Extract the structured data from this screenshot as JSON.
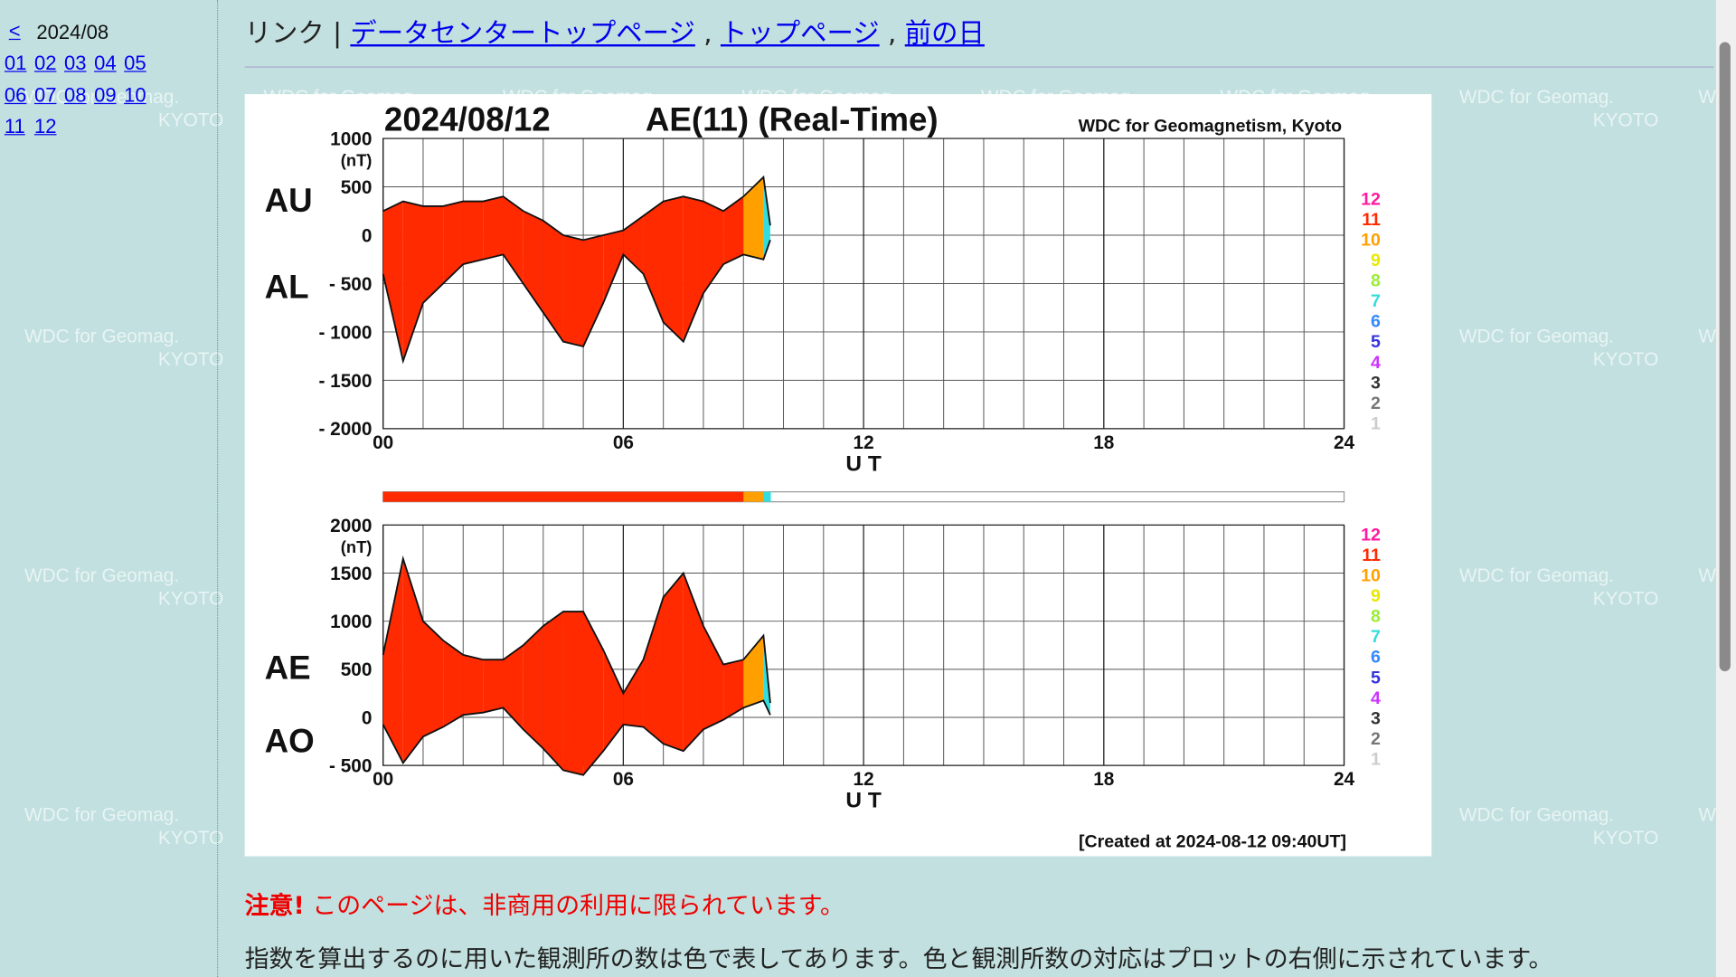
{
  "sidebar": {
    "prev": "<",
    "month": "2024/08",
    "days": [
      "01",
      "02",
      "03",
      "04",
      "05",
      "06",
      "07",
      "08",
      "09",
      "10",
      "11",
      "12"
    ]
  },
  "watermark": {
    "line1": "WDC for Geomag.",
    "line2": "KYOTO"
  },
  "header": {
    "label": "リンク |",
    "links": [
      "データセンタートップページ",
      "トップページ",
      "前の日"
    ],
    "separator": ","
  },
  "notice": {
    "warning": "注意!",
    "text": "このページは、非商用の利用に限られています。",
    "description": "指数を算出するのに用いた観測所の数は色で表してあります。色と観測所数の対応はプロットの右側に示されています。"
  },
  "chart_data": [
    {
      "type": "band",
      "date": "2024/08/12",
      "title": "AE(11) (Real-Time)",
      "credit": "WDC for Geomagnetism, Kyoto",
      "unit": "(nT)",
      "xlabel": "U T",
      "x": [
        0,
        0.5,
        1,
        1.5,
        2,
        2.5,
        3,
        3.5,
        4,
        4.5,
        5,
        5.5,
        6,
        6.5,
        7,
        7.5,
        8,
        8.5,
        9,
        9.5,
        9.67
      ],
      "series": [
        {
          "name": "AU",
          "values": [
            250,
            350,
            300,
            300,
            350,
            350,
            400,
            250,
            150,
            0,
            -50,
            0,
            50,
            200,
            350,
            400,
            350,
            250,
            400,
            600,
            100
          ]
        },
        {
          "name": "AL",
          "values": [
            -400,
            -1300,
            -700,
            -500,
            -300,
            -250,
            -200,
            -500,
            -800,
            -1100,
            -1150,
            -700,
            -200,
            -400,
            -900,
            -1100,
            -600,
            -300,
            -200,
            -250,
            -50
          ]
        }
      ],
      "station_counts": [
        11,
        11,
        11,
        11,
        11,
        11,
        11,
        11,
        11,
        11,
        11,
        11,
        11,
        11,
        11,
        11,
        11,
        11,
        11,
        10,
        7
      ],
      "xlim": [
        0,
        24
      ],
      "xticks": [
        {
          "value": 0,
          "label": "00"
        },
        {
          "value": 6,
          "label": "06"
        },
        12,
        18,
        24
      ],
      "ylim": [
        -2000,
        1000
      ],
      "yticks": [
        1000,
        500,
        0,
        {
          "value": -500,
          "label": "- 500"
        },
        {
          "value": -1000,
          "label": "- 1000"
        },
        {
          "value": -1500,
          "label": "- 1500"
        },
        {
          "value": -2000,
          "label": "- 2000"
        }
      ],
      "grid": true,
      "station_legend": [
        {
          "label": 12,
          "color": "#ff1aa0"
        },
        {
          "label": 11,
          "color": "#ff2a00"
        },
        {
          "label": 10,
          "color": "#ffa000"
        },
        {
          "label": 9,
          "color": "#e8e800"
        },
        {
          "label": 8,
          "color": "#99ee33"
        },
        {
          "label": 7,
          "color": "#33dddd"
        },
        {
          "label": 6,
          "color": "#3388ff"
        },
        {
          "label": 5,
          "color": "#3333dd"
        },
        {
          "label": 4,
          "color": "#cc33ff"
        },
        {
          "label": 3,
          "color": "#333333"
        },
        {
          "label": 2,
          "color": "#777777"
        },
        {
          "label": 1,
          "color": "#cccccc"
        }
      ]
    },
    {
      "type": "band",
      "unit": "(nT)",
      "xlabel": "U T",
      "note": "[Created at 2024-08-12 09:40UT]",
      "x": [
        0,
        0.5,
        1,
        1.5,
        2,
        2.5,
        3,
        3.5,
        4,
        4.5,
        5,
        5.5,
        6,
        6.5,
        7,
        7.5,
        8,
        8.5,
        9,
        9.5,
        9.67
      ],
      "series": [
        {
          "name": "AE",
          "values": [
            650,
            1650,
            1000,
            800,
            650,
            600,
            600,
            750,
            950,
            1100,
            1100,
            700,
            250,
            600,
            1250,
            1500,
            950,
            550,
            600,
            850,
            150
          ]
        },
        {
          "name": "AO",
          "values": [
            -75,
            -475,
            -200,
            -100,
            25,
            50,
            100,
            -125,
            -325,
            -550,
            -600,
            -350,
            -75,
            -100,
            -275,
            -350,
            -125,
            -25,
            100,
            175,
            25
          ]
        }
      ],
      "station_counts": [
        11,
        11,
        11,
        11,
        11,
        11,
        11,
        11,
        11,
        11,
        11,
        11,
        11,
        11,
        11,
        11,
        11,
        11,
        11,
        10,
        7
      ],
      "xlim": [
        0,
        24
      ],
      "xticks": [
        {
          "value": 0,
          "label": "00"
        },
        {
          "value": 6,
          "label": "06"
        },
        12,
        18,
        24
      ],
      "ylim": [
        -500,
        2000
      ],
      "yticks": [
        2000,
        1500,
        1000,
        500,
        0,
        {
          "value": -500,
          "label": "- 500"
        }
      ],
      "grid": true,
      "station_legend": [
        {
          "label": 12,
          "color": "#ff1aa0"
        },
        {
          "label": 11,
          "color": "#ff2a00"
        },
        {
          "label": 10,
          "color": "#ffa000"
        },
        {
          "label": 9,
          "color": "#e8e800"
        },
        {
          "label": 8,
          "color": "#99ee33"
        },
        {
          "label": 7,
          "color": "#33dddd"
        },
        {
          "label": 6,
          "color": "#3388ff"
        },
        {
          "label": 5,
          "color": "#3333dd"
        },
        {
          "label": 4,
          "color": "#cc33ff"
        },
        {
          "label": 3,
          "color": "#333333"
        },
        {
          "label": 2,
          "color": "#777777"
        },
        {
          "label": 1,
          "color": "#cccccc"
        }
      ]
    }
  ]
}
